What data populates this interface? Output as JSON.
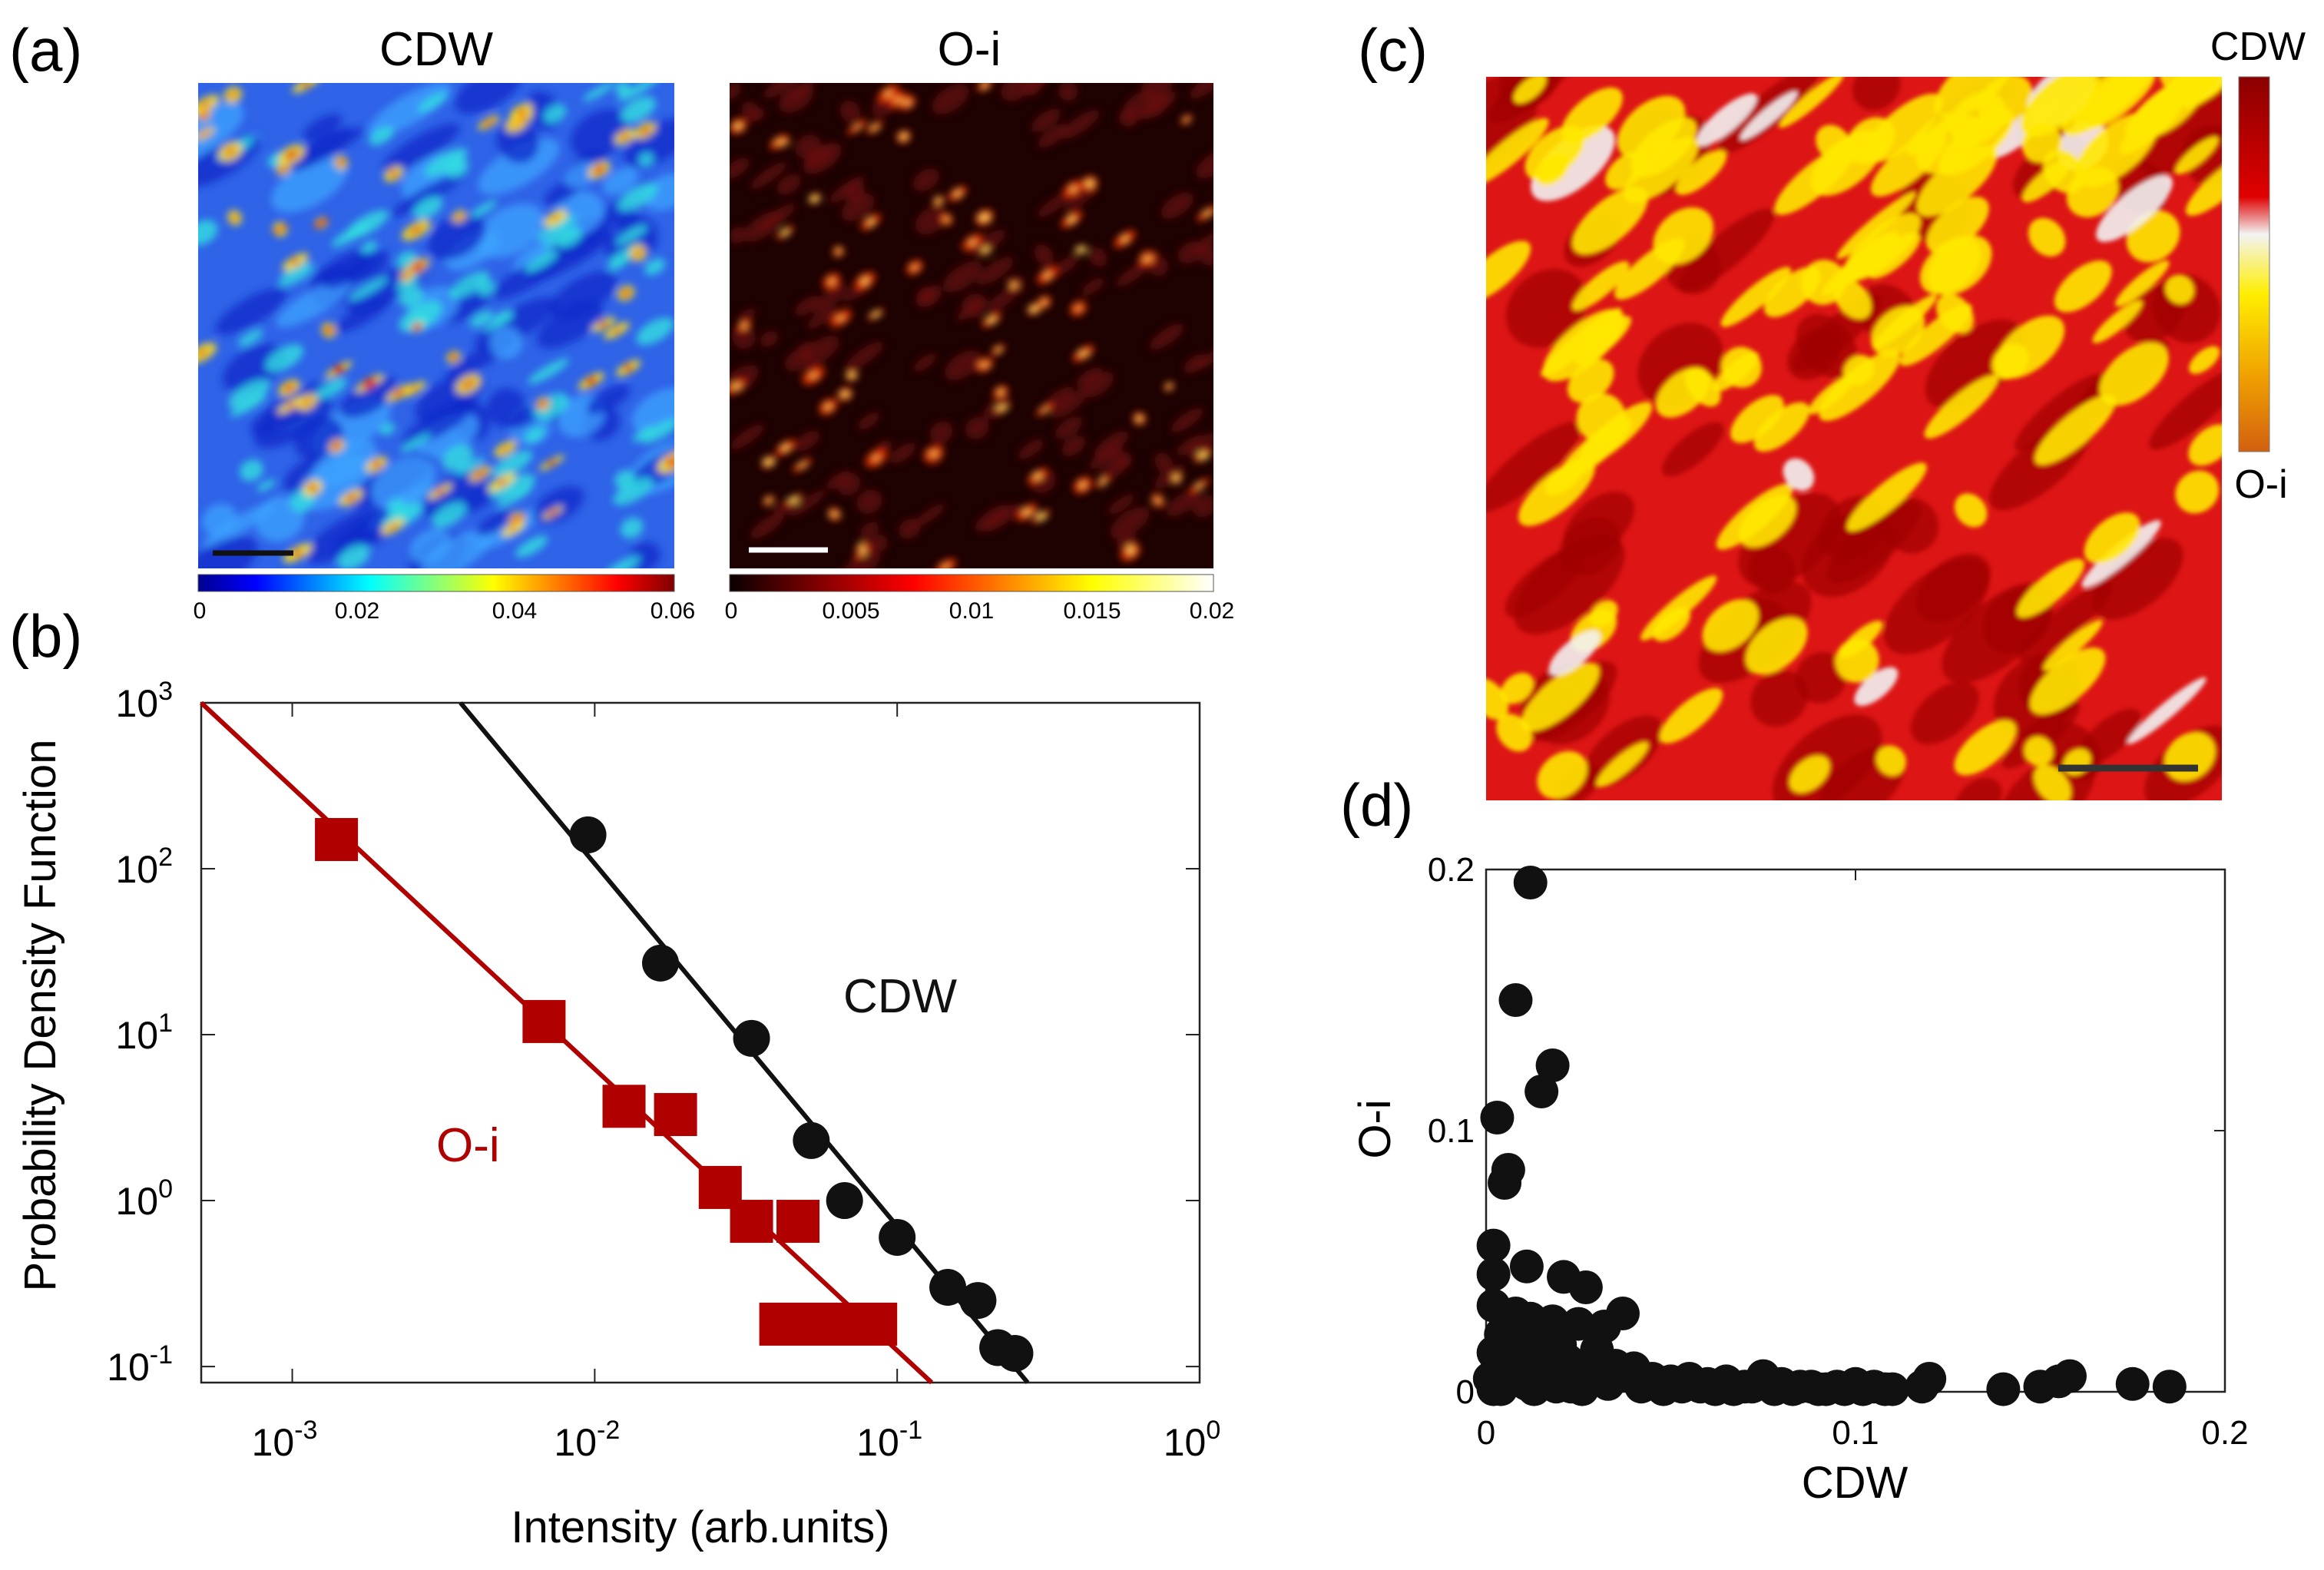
{
  "panel_labels": {
    "a": "(a)",
    "b": "(b)",
    "c": "(c)",
    "d": "(d)"
  },
  "colors": {
    "black": "#111111",
    "red": "#b00000",
    "axis": "#222222"
  },
  "chart_data": [
    {
      "id": "a_cdw",
      "type": "heatmap",
      "title": "CDW",
      "colormap": "jet",
      "colorbar_ticks": [
        "0",
        "0.02",
        "0.04",
        "0.06"
      ],
      "colorbar_range": [
        0,
        0.06
      ],
      "scale_bar_color": "#111111"
    },
    {
      "id": "a_oi",
      "type": "heatmap",
      "title": "O-i",
      "colormap": "hot",
      "colorbar_ticks": [
        "0",
        "0.005",
        "0.01",
        "0.015",
        "0.02"
      ],
      "colorbar_range": [
        0,
        0.02
      ],
      "scale_bar_color": "#ffffff"
    },
    {
      "id": "b",
      "type": "scatter",
      "xlabel": "Intensity (arb.units)",
      "ylabel": "Probability Density Function",
      "xscale": "log",
      "yscale": "log",
      "xlim": [
        0.0005,
        1
      ],
      "ylim": [
        0.08,
        1000
      ],
      "x_ticks": [
        {
          "value": 0.001,
          "base": "10",
          "exp": "-3"
        },
        {
          "value": 0.01,
          "base": "10",
          "exp": "-2"
        },
        {
          "value": 0.1,
          "base": "10",
          "exp": "-1"
        },
        {
          "value": 1,
          "base": "10",
          "exp": "0"
        }
      ],
      "y_ticks": [
        {
          "value": 0.1,
          "base": "10",
          "exp": "-1"
        },
        {
          "value": 1,
          "base": "10",
          "exp": "0"
        },
        {
          "value": 10,
          "base": "10",
          "exp": "1"
        },
        {
          "value": 100,
          "base": "10",
          "exp": "2"
        },
        {
          "value": 1000,
          "base": "10",
          "exp": "3"
        }
      ],
      "series": [
        {
          "name": "CDW",
          "marker": "circle",
          "color": "#111111",
          "x": [
            0.0095,
            0.0165,
            0.033,
            0.052,
            0.067,
            0.1,
            0.147,
            0.185,
            0.215,
            0.245
          ],
          "y": [
            160,
            27,
            9.5,
            2.3,
            1.0,
            0.6,
            0.3,
            0.25,
            0.13,
            0.12
          ],
          "fit": {
            "x": [
              0.0036,
              0.27
            ],
            "y": [
              1000,
              0.08
            ]
          }
        },
        {
          "name": "O-i",
          "marker": "square",
          "color": "#b00000",
          "x": [
            0.0014,
            0.0068,
            0.0125,
            0.0185,
            0.026,
            0.033,
            0.047
          ],
          "y": [
            150,
            12,
            3.7,
            3.3,
            1.2,
            0.75,
            0.75
          ],
          "bars": [
            {
              "x_from": 0.035,
              "x_to": 0.1,
              "y": 0.18
            }
          ],
          "fit": {
            "x": [
              0.0005,
              0.13
            ],
            "y": [
              1000,
              0.08
            ]
          }
        }
      ]
    },
    {
      "id": "c",
      "type": "heatmap",
      "colormap": "bivariate",
      "colorbar_labels": {
        "top": "CDW",
        "bottom": "O-i"
      },
      "scale_bar_color": "#333333"
    },
    {
      "id": "d",
      "type": "scatter",
      "xlabel": "CDW",
      "ylabel": "O-i",
      "xlim": [
        0,
        0.2
      ],
      "ylim": [
        0,
        0.2
      ],
      "x_ticks": [
        "0",
        "0.1",
        "0.2"
      ],
      "y_ticks": [
        "0",
        "0.1",
        "0.2"
      ],
      "marker_color": "#111111",
      "x": [
        0.012,
        0.008,
        0.015,
        0.018,
        0.003,
        0.005,
        0.006,
        0.002,
        0.002,
        0.011,
        0.021,
        0.027,
        0.037,
        0.002,
        0.008,
        0.012,
        0.018,
        0.025,
        0.032,
        0.004,
        0.01,
        0.015,
        0.02,
        0.03,
        0.002,
        0.006,
        0.014,
        0.022,
        0.028,
        0.035,
        0.04,
        0.003,
        0.009,
        0.016,
        0.024,
        0.031,
        0.045,
        0.05,
        0.055,
        0.06,
        0.065,
        0.07,
        0.075,
        0.08,
        0.085,
        0.09,
        0.095,
        0.1,
        0.105,
        0.11,
        0.12,
        0.14,
        0.15,
        0.155,
        0.158,
        0.175,
        0.185,
        0.001,
        0.005,
        0.012,
        0.019,
        0.026,
        0.033,
        0.042,
        0.048,
        0.058,
        0.067,
        0.078,
        0.088,
        0.097,
        0.108,
        0.118,
        0.004,
        0.013,
        0.023,
        0.007,
        0.017,
        0.029,
        0.036,
        0.044,
        0.053,
        0.062,
        0.072,
        0.083,
        0.092,
        0.102,
        0.002,
        0.011
      ],
      "y": [
        0.195,
        0.15,
        0.115,
        0.125,
        0.105,
        0.08,
        0.085,
        0.056,
        0.045,
        0.048,
        0.044,
        0.04,
        0.03,
        0.033,
        0.03,
        0.028,
        0.027,
        0.026,
        0.025,
        0.022,
        0.021,
        0.02,
        0.018,
        0.016,
        0.015,
        0.014,
        0.013,
        0.012,
        0.011,
        0.01,
        0.009,
        0.009,
        0.008,
        0.007,
        0.006,
        0.006,
        0.005,
        0.004,
        0.005,
        0.003,
        0.004,
        0.002,
        0.006,
        0.003,
        0.002,
        0.001,
        0.002,
        0.003,
        0.002,
        0.001,
        0.005,
        0.001,
        0.002,
        0.004,
        0.006,
        0.003,
        0.002,
        0.005,
        0.004,
        0.003,
        0.002,
        0.001,
        0.003,
        0.002,
        0.001,
        0.002,
        0.001,
        0.001,
        0.002,
        0.001,
        0.001,
        0.002,
        0.001,
        0.001,
        0.002,
        0.017,
        0.013,
        0.008,
        0.006,
        0.003,
        0.002,
        0.001,
        0.002,
        0.001,
        0.001,
        0.001,
        0.001,
        0.003
      ]
    }
  ]
}
